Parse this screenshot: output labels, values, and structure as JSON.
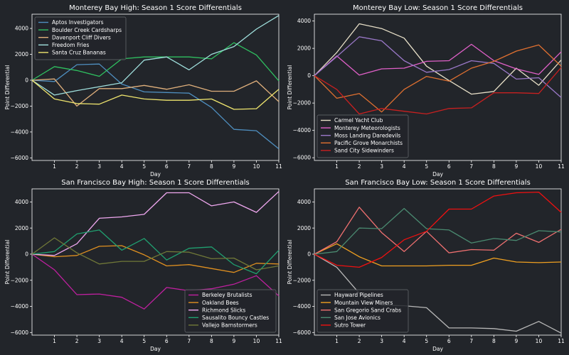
{
  "chart_data": [
    {
      "type": "line",
      "title": "Monterey Bay High: Season 1 Score Differentials",
      "xlabel": "Day",
      "ylabel": "Point Differential",
      "x": [
        0,
        1,
        2,
        3,
        4,
        5,
        6,
        7,
        8,
        9,
        10,
        11
      ],
      "xticks": [
        1,
        2,
        3,
        4,
        5,
        6,
        7,
        8,
        9,
        10,
        11
      ],
      "yticks": [
        -6000,
        -4000,
        -2000,
        0,
        2000,
        4000
      ],
      "ylim": [
        -6200,
        5100
      ],
      "legend": "top-left",
      "series": [
        {
          "name": "Aptos Investigators",
          "color": "#4f8fc0",
          "values": [
            0,
            -100,
            1200,
            1250,
            -300,
            -900,
            -950,
            -1000,
            -2100,
            -3800,
            -3900,
            -5300
          ]
        },
        {
          "name": "Boulder Creek Cardsharps",
          "color": "#2fc060",
          "values": [
            0,
            1050,
            750,
            300,
            1650,
            1800,
            1800,
            1800,
            1650,
            2900,
            1950,
            -50
          ]
        },
        {
          "name": "Davenport Cliff Divers",
          "color": "#e0b07c",
          "values": [
            0,
            100,
            -2000,
            -650,
            -650,
            -400,
            -700,
            -350,
            -850,
            -850,
            -50,
            -1650
          ]
        },
        {
          "name": "Freedom Fries",
          "color": "#a0e0dd",
          "values": [
            0,
            -1150,
            -800,
            -500,
            -200,
            1550,
            1800,
            800,
            2000,
            2600,
            3950,
            5000
          ]
        },
        {
          "name": "Santa Cruz Bananas",
          "color": "#f0e66e",
          "values": [
            0,
            -1450,
            -1800,
            -1850,
            -1150,
            -1450,
            -1550,
            -1550,
            -1450,
            -2250,
            -2200,
            -700
          ]
        }
      ]
    },
    {
      "type": "line",
      "title": "Monterey Bay Low: Season 1 Score Differentials",
      "xlabel": "Day",
      "ylabel": "Point Differential",
      "x": [
        0,
        1,
        2,
        3,
        4,
        5,
        6,
        7,
        8,
        9,
        10,
        11
      ],
      "xticks": [
        1,
        2,
        3,
        4,
        5,
        6,
        7,
        8,
        9,
        10,
        11
      ],
      "yticks": [
        -6000,
        -4000,
        -2000,
        0,
        2000,
        4000
      ],
      "ylim": [
        -6200,
        4500
      ],
      "legend": "bottom-left",
      "series": [
        {
          "name": "Carmel Yacht Club",
          "color": "#e8e0c8",
          "values": [
            0,
            1700,
            3800,
            3450,
            2750,
            700,
            -350,
            -1350,
            -1150,
            550,
            -700,
            1150
          ]
        },
        {
          "name": "Monterey Meteorologists",
          "color": "#e060c8",
          "values": [
            0,
            1450,
            50,
            500,
            550,
            1050,
            1100,
            2300,
            1100,
            500,
            100,
            1750
          ]
        },
        {
          "name": "Moss Landing Daredevils",
          "color": "#9a78c8",
          "values": [
            0,
            1400,
            2850,
            2550,
            1100,
            250,
            450,
            1100,
            900,
            -250,
            -150,
            -1600
          ]
        },
        {
          "name": "Pacific Grove Monarchists",
          "color": "#e07030",
          "values": [
            0,
            -1650,
            -1300,
            -2650,
            -1000,
            -50,
            -400,
            550,
            1050,
            1800,
            2250,
            700
          ]
        },
        {
          "name": "Sand City Sidewinders",
          "color": "#c82020",
          "values": [
            0,
            -1000,
            -2800,
            -2400,
            -2600,
            -2800,
            -2400,
            -2350,
            -1250,
            -1250,
            -1300,
            600
          ]
        }
      ]
    },
    {
      "type": "line",
      "title": "San Francisco Bay High: Season 1 Score Differentials",
      "xlabel": "Day",
      "ylabel": "Point Differential",
      "x": [
        0,
        1,
        2,
        3,
        4,
        5,
        6,
        7,
        8,
        9,
        10,
        11
      ],
      "xticks": [
        1,
        2,
        3,
        4,
        5,
        6,
        7,
        8,
        9,
        10,
        11
      ],
      "yticks": [
        -6000,
        -4000,
        -2000,
        0,
        2000,
        4000
      ],
      "ylim": [
        -6200,
        5000
      ],
      "legend": "bottom-right",
      "series": [
        {
          "name": "Berkeley Brutalists",
          "color": "#c020a0",
          "values": [
            0,
            -1200,
            -3100,
            -3050,
            -3300,
            -4200,
            -2550,
            -2800,
            -2650,
            -2300,
            -1650,
            -3200
          ]
        },
        {
          "name": "Oakland Bees",
          "color": "#e09020",
          "values": [
            0,
            -200,
            -100,
            600,
            650,
            -50,
            -900,
            -800,
            -1100,
            -1400,
            -700,
            -750
          ]
        },
        {
          "name": "Richmond Slicks",
          "color": "#f0a8f0",
          "values": [
            0,
            -100,
            800,
            2750,
            2850,
            3050,
            4700,
            4700,
            3700,
            4000,
            3200,
            4800
          ]
        },
        {
          "name": "Sausalito Bouncy Castles",
          "color": "#20a070",
          "values": [
            0,
            200,
            1550,
            1850,
            300,
            1200,
            -450,
            450,
            550,
            -800,
            -1500,
            300
          ]
        },
        {
          "name": "Vallejo Barnstormers",
          "color": "#707838",
          "values": [
            0,
            1250,
            100,
            -750,
            -550,
            -550,
            200,
            150,
            -350,
            -300,
            -1200,
            -900
          ]
        }
      ]
    },
    {
      "type": "line",
      "title": "San Francisco Bay Low: Season 1 Score Differentials",
      "xlabel": "Day",
      "ylabel": "Point Differential",
      "x": [
        0,
        1,
        2,
        3,
        4,
        5,
        6,
        7,
        8,
        9,
        10,
        11
      ],
      "xticks": [
        1,
        2,
        3,
        4,
        5,
        6,
        7,
        8,
        9,
        10,
        11
      ],
      "yticks": [
        -6000,
        -4000,
        -2000,
        0,
        2000,
        4000
      ],
      "ylim": [
        -6200,
        5000
      ],
      "legend": "bottom-left",
      "series": [
        {
          "name": "Hayward Pipelines",
          "color": "#b8b8b8",
          "values": [
            0,
            -1000,
            -3000,
            -3900,
            -3950,
            -4100,
            -5650,
            -5650,
            -5700,
            -5900,
            -5150,
            -6050
          ]
        },
        {
          "name": "Mountain View Miners",
          "color": "#f0a020",
          "values": [
            0,
            800,
            -200,
            -900,
            -900,
            -900,
            -850,
            -850,
            -300,
            -600,
            -650,
            -600
          ]
        },
        {
          "name": "San Gregorio Sand Crabs",
          "color": "#f07070",
          "values": [
            0,
            950,
            3600,
            1650,
            200,
            1750,
            100,
            350,
            300,
            1600,
            900,
            1900
          ]
        },
        {
          "name": "San Jose Avionics",
          "color": "#4a8a70",
          "values": [
            0,
            200,
            2000,
            1950,
            3500,
            1950,
            1850,
            850,
            1200,
            1050,
            1800,
            1700
          ]
        },
        {
          "name": "Sutro Tower",
          "color": "#f01010",
          "values": [
            0,
            -850,
            -1000,
            -250,
            1100,
            1750,
            3450,
            3450,
            4450,
            4700,
            4750,
            3200
          ]
        }
      ]
    }
  ]
}
